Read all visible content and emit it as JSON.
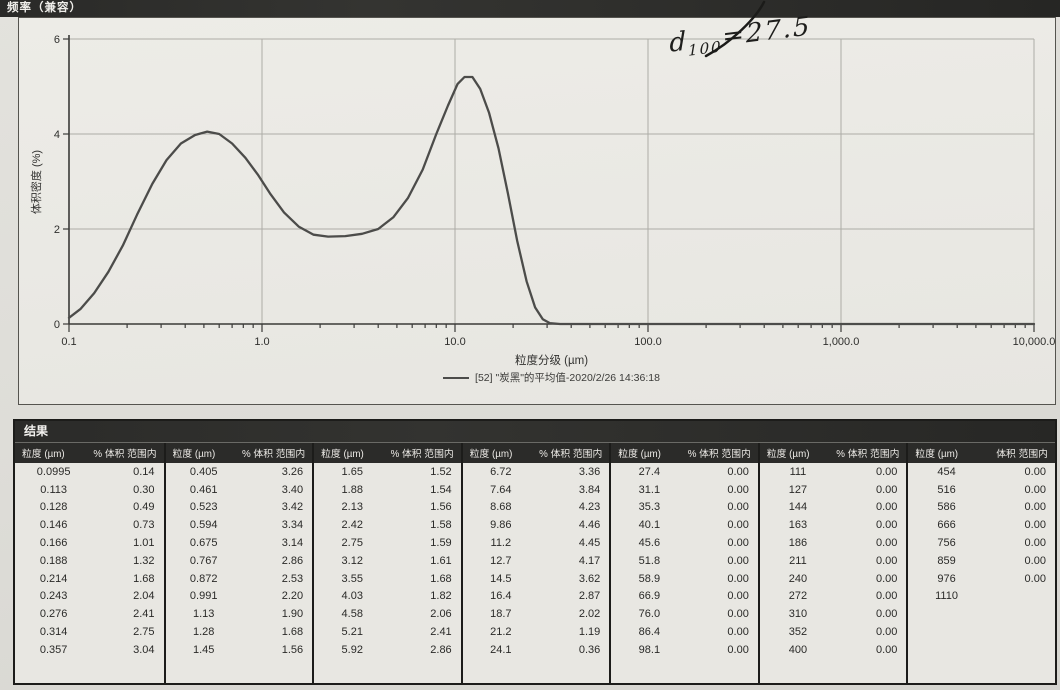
{
  "header": {
    "title": "频率（兼容）"
  },
  "chart_data": {
    "type": "line",
    "title": "频率（兼容）",
    "xlabel": "粒度分级 (µm)",
    "ylabel": "体积密度 (%)",
    "x_scale": "log",
    "xlim": [
      0.1,
      10000
    ],
    "ylim": [
      0,
      6
    ],
    "x_ticks": [
      0.1,
      1,
      10,
      100,
      1000,
      10000
    ],
    "x_tick_labels": [
      "0.1",
      "1.0",
      "10.0",
      "100.0",
      "1,000.0",
      "10,000.0"
    ],
    "y_ticks": [
      0,
      2,
      4,
      6
    ],
    "y_tick_labels": [
      "0",
      "2",
      "4",
      "6"
    ],
    "grid": true,
    "legend_position": "bottom",
    "legend_label": "[52] \"炭黑\"的平均值-2020/2/26 14:36:18",
    "annotation": {
      "prefix": "d",
      "sub": "100",
      "suffix": "=27.5"
    },
    "series": [
      {
        "name": "[52] \"炭黑\"的平均值-2020/2/26 14:36:18",
        "points": [
          [
            0.1,
            0.13
          ],
          [
            0.115,
            0.32
          ],
          [
            0.135,
            0.65
          ],
          [
            0.16,
            1.1
          ],
          [
            0.19,
            1.65
          ],
          [
            0.225,
            2.3
          ],
          [
            0.27,
            2.95
          ],
          [
            0.32,
            3.45
          ],
          [
            0.38,
            3.8
          ],
          [
            0.45,
            3.98
          ],
          [
            0.52,
            4.05
          ],
          [
            0.6,
            4.0
          ],
          [
            0.7,
            3.8
          ],
          [
            0.82,
            3.5
          ],
          [
            0.95,
            3.15
          ],
          [
            1.1,
            2.75
          ],
          [
            1.3,
            2.35
          ],
          [
            1.55,
            2.05
          ],
          [
            1.85,
            1.88
          ],
          [
            2.2,
            1.84
          ],
          [
            2.7,
            1.85
          ],
          [
            3.3,
            1.9
          ],
          [
            4.0,
            2.0
          ],
          [
            4.8,
            2.25
          ],
          [
            5.7,
            2.65
          ],
          [
            6.8,
            3.25
          ],
          [
            8.0,
            4.0
          ],
          [
            9.2,
            4.6
          ],
          [
            10.3,
            5.05
          ],
          [
            11.2,
            5.2
          ],
          [
            12.3,
            5.2
          ],
          [
            13.5,
            4.95
          ],
          [
            15.0,
            4.45
          ],
          [
            16.8,
            3.7
          ],
          [
            18.8,
            2.75
          ],
          [
            21.0,
            1.75
          ],
          [
            23.5,
            0.9
          ],
          [
            26.0,
            0.35
          ],
          [
            28.5,
            0.1
          ],
          [
            31.0,
            0.02
          ],
          [
            35.0,
            0.0
          ],
          [
            100,
            0.0
          ],
          [
            1000,
            0.0
          ],
          [
            10000,
            0.0
          ]
        ]
      }
    ]
  },
  "results": {
    "title": "结果",
    "groups": [
      {
        "headers": [
          "粒度 (µm)",
          "% 体积 范围内"
        ],
        "rows": [
          [
            "0.0995",
            "0.14"
          ],
          [
            "0.113",
            "0.30"
          ],
          [
            "0.128",
            "0.49"
          ],
          [
            "0.146",
            "0.73"
          ],
          [
            "0.166",
            "1.01"
          ],
          [
            "0.188",
            "1.32"
          ],
          [
            "0.214",
            "1.68"
          ],
          [
            "0.243",
            "2.04"
          ],
          [
            "0.276",
            "2.41"
          ],
          [
            "0.314",
            "2.75"
          ],
          [
            "0.357",
            "3.04"
          ]
        ]
      },
      {
        "headers": [
          "粒度 (µm)",
          "% 体积 范围内"
        ],
        "rows": [
          [
            "0.405",
            "3.26"
          ],
          [
            "0.461",
            "3.40"
          ],
          [
            "0.523",
            "3.42"
          ],
          [
            "0.594",
            "3.34"
          ],
          [
            "0.675",
            "3.14"
          ],
          [
            "0.767",
            "2.86"
          ],
          [
            "0.872",
            "2.53"
          ],
          [
            "0.991",
            "2.20"
          ],
          [
            "1.13",
            "1.90"
          ],
          [
            "1.28",
            "1.68"
          ],
          [
            "1.45",
            "1.56"
          ]
        ]
      },
      {
        "headers": [
          "粒度 (µm)",
          "% 体积 范围内"
        ],
        "rows": [
          [
            "1.65",
            "1.52"
          ],
          [
            "1.88",
            "1.54"
          ],
          [
            "2.13",
            "1.56"
          ],
          [
            "2.42",
            "1.58"
          ],
          [
            "2.75",
            "1.59"
          ],
          [
            "3.12",
            "1.61"
          ],
          [
            "3.55",
            "1.68"
          ],
          [
            "4.03",
            "1.82"
          ],
          [
            "4.58",
            "2.06"
          ],
          [
            "5.21",
            "2.41"
          ],
          [
            "5.92",
            "2.86"
          ]
        ]
      },
      {
        "headers": [
          "粒度 (µm)",
          "% 体积 范围内"
        ],
        "rows": [
          [
            "6.72",
            "3.36"
          ],
          [
            "7.64",
            "3.84"
          ],
          [
            "8.68",
            "4.23"
          ],
          [
            "9.86",
            "4.46"
          ],
          [
            "11.2",
            "4.45"
          ],
          [
            "12.7",
            "4.17"
          ],
          [
            "14.5",
            "3.62"
          ],
          [
            "16.4",
            "2.87"
          ],
          [
            "18.7",
            "2.02"
          ],
          [
            "21.2",
            "1.19"
          ],
          [
            "24.1",
            "0.36"
          ]
        ]
      },
      {
        "headers": [
          "粒度 (µm)",
          "% 体积 范围内"
        ],
        "rows": [
          [
            "27.4",
            "0.00"
          ],
          [
            "31.1",
            "0.00"
          ],
          [
            "35.3",
            "0.00"
          ],
          [
            "40.1",
            "0.00"
          ],
          [
            "45.6",
            "0.00"
          ],
          [
            "51.8",
            "0.00"
          ],
          [
            "58.9",
            "0.00"
          ],
          [
            "66.9",
            "0.00"
          ],
          [
            "76.0",
            "0.00"
          ],
          [
            "86.4",
            "0.00"
          ],
          [
            "98.1",
            "0.00"
          ]
        ]
      },
      {
        "headers": [
          "粒度 (µm)",
          "% 体积 范围内"
        ],
        "rows": [
          [
            "111",
            "0.00"
          ],
          [
            "127",
            "0.00"
          ],
          [
            "144",
            "0.00"
          ],
          [
            "163",
            "0.00"
          ],
          [
            "186",
            "0.00"
          ],
          [
            "211",
            "0.00"
          ],
          [
            "240",
            "0.00"
          ],
          [
            "272",
            "0.00"
          ],
          [
            "310",
            "0.00"
          ],
          [
            "352",
            "0.00"
          ],
          [
            "400",
            "0.00"
          ]
        ]
      },
      {
        "headers": [
          "粒度 (µm)",
          "体积 范围内"
        ],
        "rows": [
          [
            "454",
            "0.00"
          ],
          [
            "516",
            "0.00"
          ],
          [
            "586",
            "0.00"
          ],
          [
            "666",
            "0.00"
          ],
          [
            "756",
            "0.00"
          ],
          [
            "859",
            "0.00"
          ],
          [
            "976",
            "0.00"
          ],
          [
            "1110",
            ""
          ]
        ]
      }
    ]
  }
}
